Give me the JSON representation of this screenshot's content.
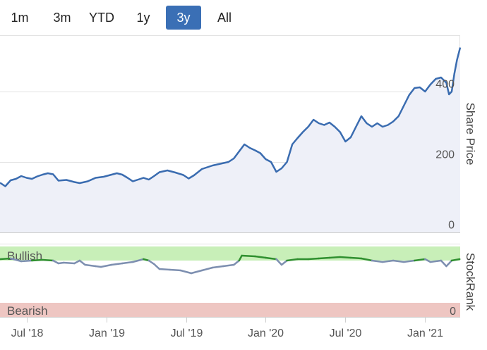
{
  "range_selector": {
    "buttons": [
      "1m",
      "3m",
      "YTD",
      "1y",
      "3y",
      "All"
    ],
    "active": "3y",
    "active_color": "#3a6fb5"
  },
  "chart_data": [
    {
      "type": "line",
      "title": "",
      "ylabel": "Share Price",
      "ylim": [
        0,
        560
      ],
      "yticks": [
        0,
        200,
        400
      ],
      "series": [
        {
          "name": "Share Price",
          "color": "#3a6cb0",
          "points": [
            [
              0,
              141
            ],
            [
              0.2,
              131
            ],
            [
              0.4,
              148
            ],
            [
              0.6,
              152
            ],
            [
              0.8,
              160
            ],
            [
              1.0,
              155
            ],
            [
              1.2,
              152
            ],
            [
              1.4,
              159
            ],
            [
              1.6,
              164
            ],
            [
              1.8,
              168
            ],
            [
              2.0,
              165
            ],
            [
              2.2,
              147
            ],
            [
              2.5,
              149
            ],
            [
              2.8,
              143
            ],
            [
              3.0,
              140
            ],
            [
              3.3,
              145
            ],
            [
              3.6,
              155
            ],
            [
              3.9,
              158
            ],
            [
              4.2,
              164
            ],
            [
              4.4,
              168
            ],
            [
              4.6,
              164
            ],
            [
              4.8,
              155
            ],
            [
              5.0,
              145
            ],
            [
              5.2,
              150
            ],
            [
              5.4,
              155
            ],
            [
              5.6,
              150
            ],
            [
              5.8,
              160
            ],
            [
              6.0,
              171
            ],
            [
              6.3,
              176
            ],
            [
              6.6,
              170
            ],
            [
              6.9,
              163
            ],
            [
              7.1,
              153
            ],
            [
              7.3,
              162
            ],
            [
              7.6,
              180
            ],
            [
              8.0,
              190
            ],
            [
              8.3,
              195
            ],
            [
              8.6,
              200
            ],
            [
              8.8,
              210
            ],
            [
              9.0,
              230
            ],
            [
              9.2,
              250
            ],
            [
              9.4,
              240
            ],
            [
              9.6,
              233
            ],
            [
              9.8,
              225
            ],
            [
              10.0,
              208
            ],
            [
              10.2,
              200
            ],
            [
              10.4,
              172
            ],
            [
              10.6,
              182
            ],
            [
              10.8,
              200
            ],
            [
              11.0,
              250
            ],
            [
              11.2,
              268
            ],
            [
              11.4,
              285
            ],
            [
              11.6,
              300
            ],
            [
              11.8,
              320
            ],
            [
              12.0,
              310
            ],
            [
              12.2,
              305
            ],
            [
              12.4,
              312
            ],
            [
              12.6,
              300
            ],
            [
              12.8,
              285
            ],
            [
              13.0,
              258
            ],
            [
              13.2,
              270
            ],
            [
              13.4,
              300
            ],
            [
              13.6,
              330
            ],
            [
              13.8,
              310
            ],
            [
              14.0,
              300
            ],
            [
              14.2,
              310
            ],
            [
              14.4,
              300
            ],
            [
              14.6,
              305
            ],
            [
              14.8,
              315
            ],
            [
              15.0,
              330
            ],
            [
              15.2,
              360
            ],
            [
              15.4,
              390
            ],
            [
              15.6,
              410
            ],
            [
              15.8,
              412
            ],
            [
              16.0,
              400
            ],
            [
              16.2,
              420
            ],
            [
              16.4,
              436
            ],
            [
              16.6,
              440
            ],
            [
              16.8,
              425
            ],
            [
              16.9,
              392
            ],
            [
              17.0,
              400
            ],
            [
              17.1,
              450
            ],
            [
              17.2,
              490
            ],
            [
              17.32,
              525
            ]
          ]
        }
      ]
    },
    {
      "type": "line",
      "title": "",
      "ylabel": "StockRank",
      "ylim": [
        0,
        100
      ],
      "yticks": [
        0
      ],
      "bands": [
        {
          "label": "Bullish",
          "from": 80,
          "to": 100,
          "color": "#c8efb8",
          "text_color": "#2e9a2e"
        },
        {
          "label": "Bearish",
          "from": 0,
          "to": 20,
          "color": "#eec6c2",
          "text_color": "#cc3a3a"
        }
      ],
      "series": [
        {
          "name": "StockRank",
          "color": "#7d8fb0",
          "bullish_color": "#2f8f2f",
          "threshold": 80,
          "points": [
            [
              0,
              82
            ],
            [
              0.4,
              83
            ],
            [
              0.8,
              79
            ],
            [
              1.2,
              80
            ],
            [
              1.6,
              81
            ],
            [
              2.0,
              80
            ],
            [
              2.2,
              76
            ],
            [
              2.4,
              77
            ],
            [
              2.8,
              76
            ],
            [
              3.0,
              80
            ],
            [
              3.2,
              74
            ],
            [
              3.6,
              72
            ],
            [
              3.8,
              71
            ],
            [
              4.2,
              74
            ],
            [
              4.6,
              76
            ],
            [
              5.0,
              78
            ],
            [
              5.4,
              82
            ],
            [
              5.6,
              80
            ],
            [
              5.8,
              75
            ],
            [
              6.0,
              68
            ],
            [
              6.4,
              67
            ],
            [
              6.8,
              66
            ],
            [
              7.2,
              62
            ],
            [
              7.6,
              66
            ],
            [
              8.0,
              70
            ],
            [
              8.4,
              72
            ],
            [
              8.8,
              74
            ],
            [
              9.0,
              80
            ],
            [
              9.1,
              87
            ],
            [
              9.6,
              86
            ],
            [
              10.0,
              84
            ],
            [
              10.4,
              82
            ],
            [
              10.6,
              74
            ],
            [
              10.8,
              80
            ],
            [
              11.2,
              82
            ],
            [
              11.6,
              82
            ],
            [
              12.0,
              83
            ],
            [
              12.4,
              84
            ],
            [
              12.8,
              85
            ],
            [
              13.2,
              84
            ],
            [
              13.6,
              83
            ],
            [
              14.0,
              80
            ],
            [
              14.4,
              78
            ],
            [
              14.8,
              80
            ],
            [
              15.2,
              78
            ],
            [
              15.6,
              80
            ],
            [
              16.0,
              82
            ],
            [
              16.2,
              78
            ],
            [
              16.6,
              80
            ],
            [
              16.8,
              72
            ],
            [
              17.0,
              80
            ],
            [
              17.3,
              82
            ]
          ]
        }
      ]
    }
  ],
  "x_axis": {
    "tick_labels": [
      "Jul '18",
      "Jan '19",
      "Jul '19",
      "Jan '20",
      "Jul '20",
      "Jan '21"
    ],
    "tick_positions": [
      1,
      4,
      7,
      10,
      13,
      16
    ],
    "domain": [
      0,
      17.32
    ]
  }
}
